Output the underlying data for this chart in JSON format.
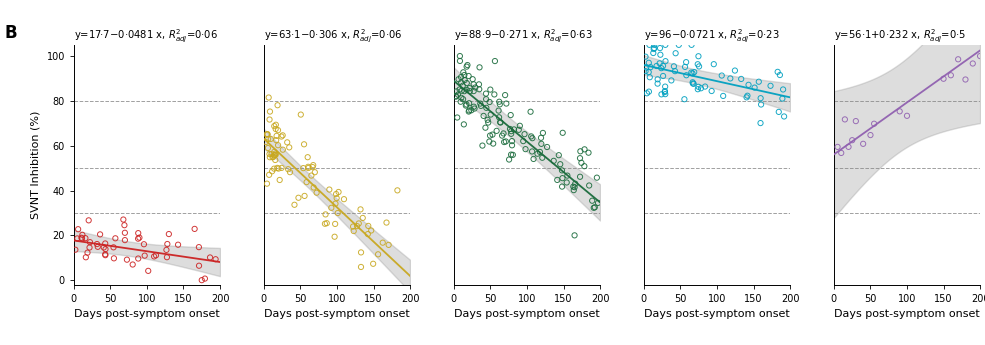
{
  "colors": [
    "#cc2222",
    "#c8a820",
    "#1a6b3c",
    "#00a0c0",
    "#9060b0"
  ],
  "slopes": [
    -0.0481,
    -0.306,
    -0.271,
    -0.0721,
    0.232
  ],
  "intercepts": [
    17.7,
    63.1,
    88.9,
    96.0,
    56.1
  ],
  "equations": [
    "y=17·7−0·0481 x, $R^2_{adj}$=0·06",
    "y=63·1−0·306 x, $R^2_{adj}$=0·06",
    "y=88·9−0·271 x, $R^2_{adj}$=0·63",
    "y=96−0·0721 x, $R^2_{adj}$=0·23",
    "y=56·1+0·232 x, $R^2_{adj}$=0·5"
  ],
  "xlim": [
    0,
    200
  ],
  "ylim": [
    -2,
    105
  ],
  "xticks": [
    0,
    50,
    100,
    150,
    200
  ],
  "yticks": [
    0,
    20,
    40,
    60,
    80,
    100
  ],
  "hlines": [
    30,
    50,
    80
  ],
  "xlabel": "Days post-symptom onset",
  "ylabel": "SVNT Inhibition (%)",
  "panel_label": "B",
  "fig_width": 9.85,
  "fig_height": 3.45,
  "bg_color": "#ffffff",
  "ci_widths": [
    3.5,
    4.0,
    4.5,
    3.5,
    18.0
  ]
}
